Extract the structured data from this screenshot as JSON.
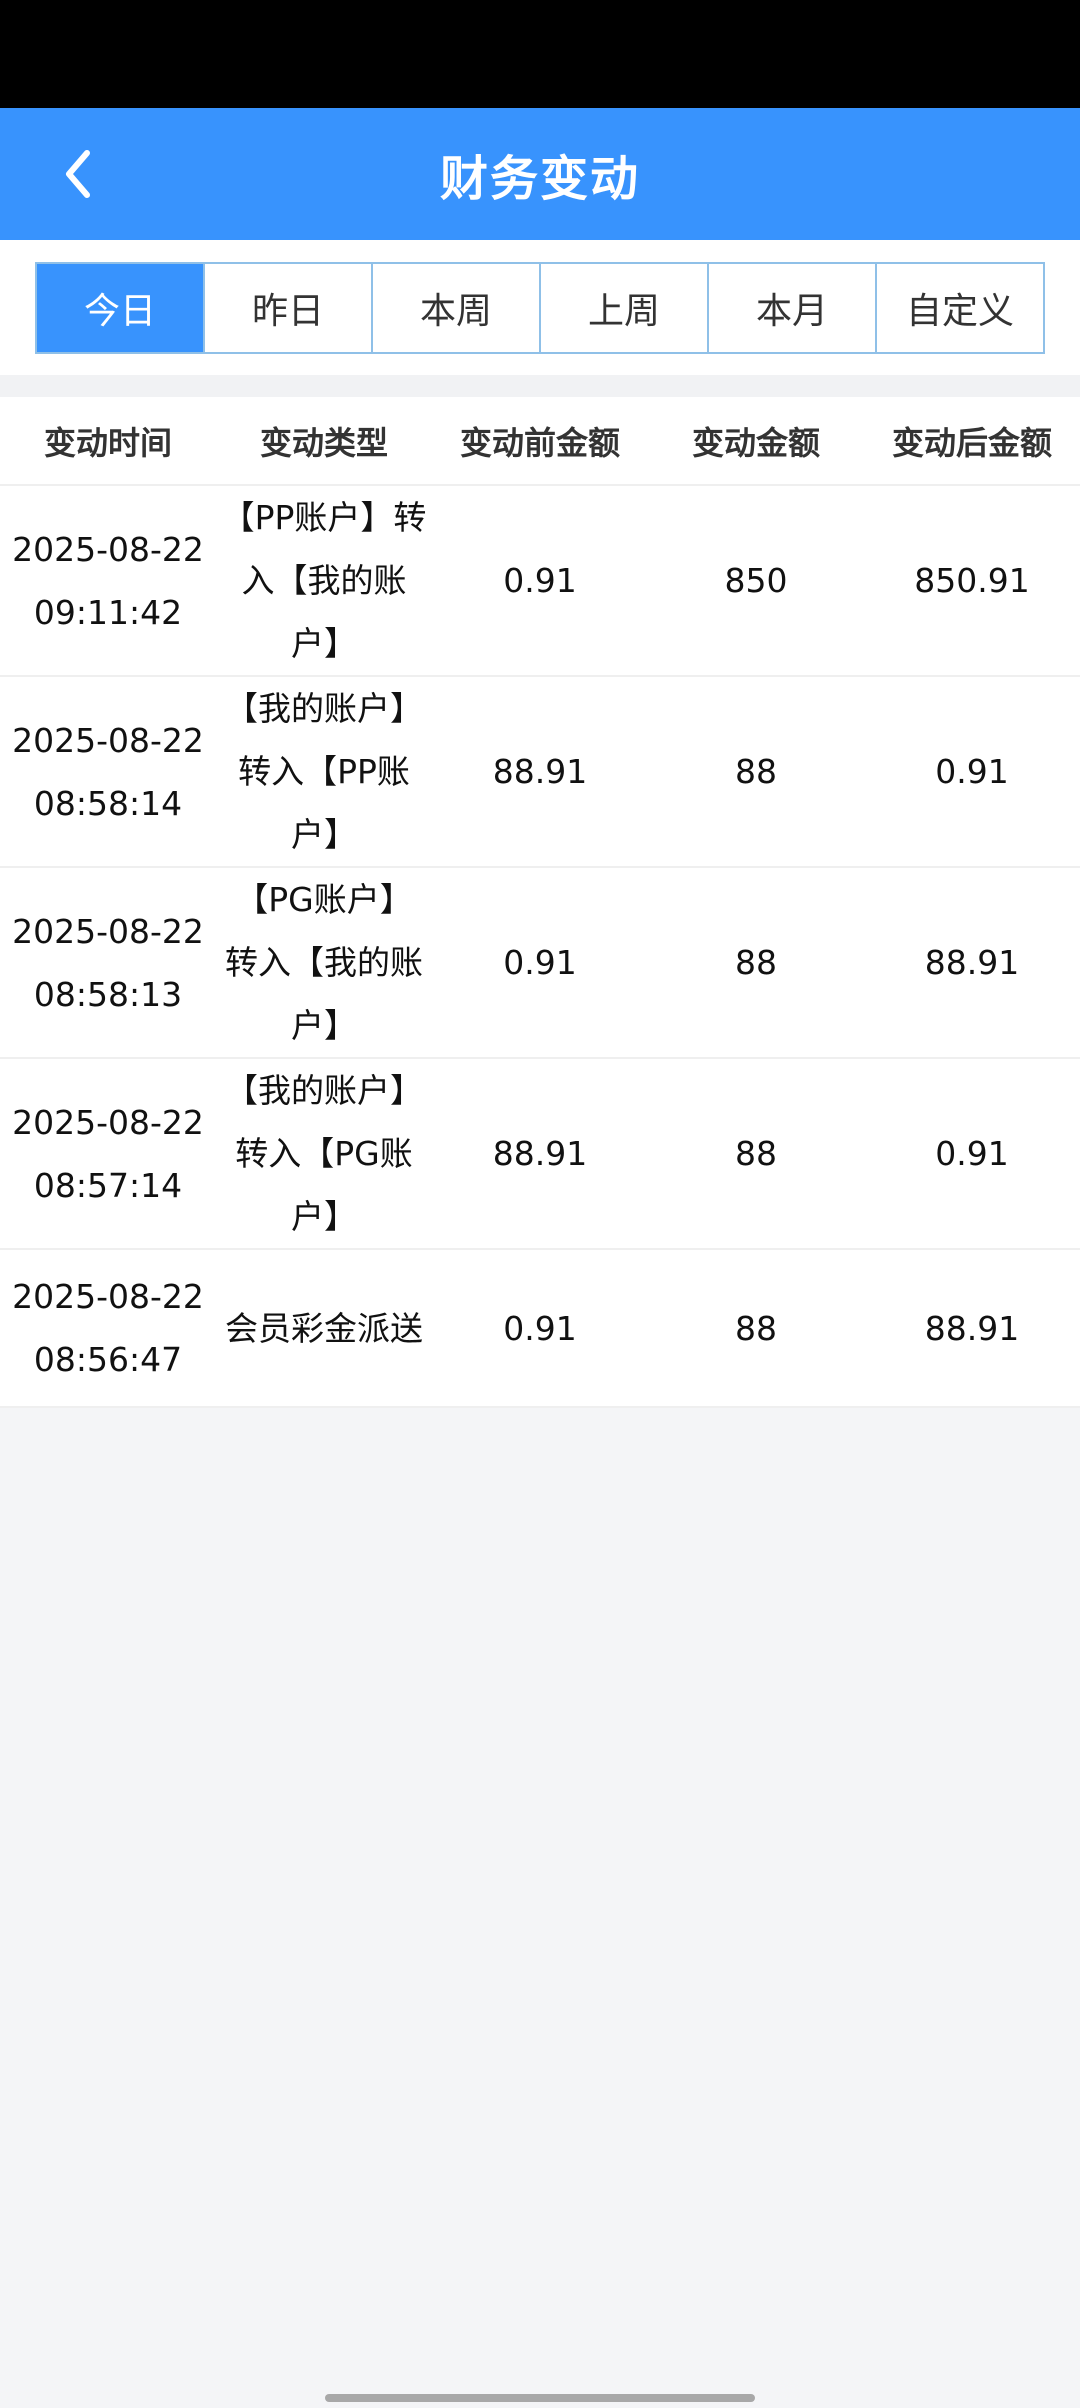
{
  "header": {
    "title": "财务变动",
    "back_icon": "chevron-left-icon"
  },
  "tabs": [
    {
      "label": "今日",
      "active": true
    },
    {
      "label": "昨日",
      "active": false
    },
    {
      "label": "本周",
      "active": false
    },
    {
      "label": "上周",
      "active": false
    },
    {
      "label": "本月",
      "active": false
    },
    {
      "label": "自定义",
      "active": false
    }
  ],
  "table": {
    "columns": [
      "变动时间",
      "变动类型",
      "变动前金额",
      "变动金额",
      "变动后金额"
    ],
    "rows": [
      {
        "date": "2025-08-22",
        "time": "09:11:42",
        "type": "【PP账户】转入【我的账户】",
        "before": "0.91",
        "amount": "850",
        "after": "850.91"
      },
      {
        "date": "2025-08-22",
        "time": "08:58:14",
        "type": "【我的账户】转入【PP账户】",
        "before": "88.91",
        "amount": "88",
        "after": "0.91"
      },
      {
        "date": "2025-08-22",
        "time": "08:58:13",
        "type": "【PG账户】转入【我的账户】",
        "before": "0.91",
        "amount": "88",
        "after": "88.91"
      },
      {
        "date": "2025-08-22",
        "time": "08:57:14",
        "type": "【我的账户】转入【PG账户】",
        "before": "88.91",
        "amount": "88",
        "after": "0.91"
      },
      {
        "date": "2025-08-22",
        "time": "08:56:47",
        "type": "会员彩金派送",
        "before": "0.91",
        "amount": "88",
        "after": "88.91"
      }
    ]
  },
  "colors": {
    "primary": "#3893fd",
    "background": "#f4f5f7",
    "tab_border": "#8fc0e8"
  }
}
